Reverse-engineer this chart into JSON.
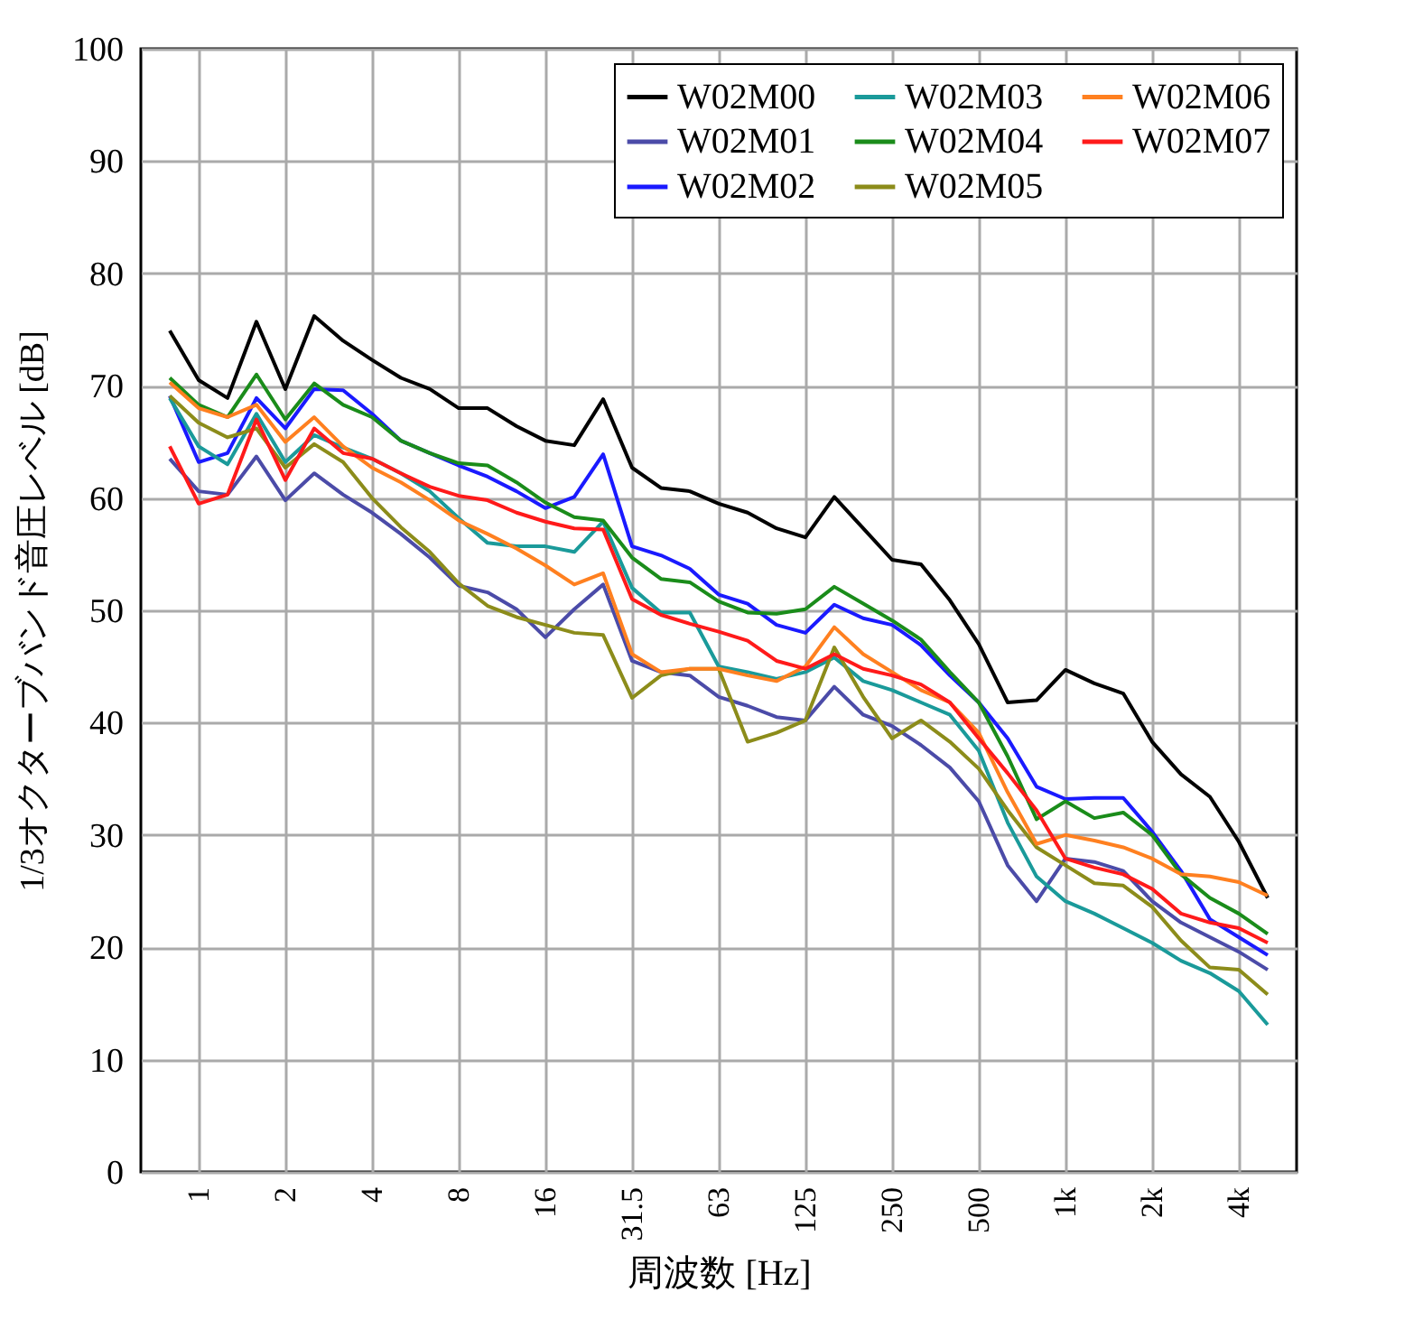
{
  "chart_data": {
    "type": "line",
    "xlabel": "周波数 [Hz]",
    "ylabel": "1/3オクターブバンド音圧レベル [dB]",
    "categories": [
      null,
      "1",
      null,
      null,
      "2",
      null,
      null,
      "4",
      null,
      null,
      "8",
      null,
      null,
      "16",
      null,
      null,
      "31.5",
      null,
      null,
      "63",
      null,
      null,
      "125",
      null,
      null,
      "250",
      null,
      null,
      "500",
      null,
      null,
      "1k",
      null,
      null,
      "2k",
      null,
      null,
      "4k",
      null
    ],
    "ylim": [
      0,
      100
    ],
    "yticks": [
      0,
      10,
      20,
      30,
      40,
      50,
      60,
      70,
      80,
      90,
      100
    ],
    "grid": true,
    "legend": "top right",
    "marker": "none",
    "line_style": "solid",
    "series": [
      {
        "name": "W02M00",
        "color": "#000000",
        "values": [
          74.9,
          70.5,
          68.9,
          75.7,
          69.7,
          76.2,
          74,
          72.3,
          70.7,
          69.7,
          68,
          68,
          66.4,
          65.1,
          64.7,
          68.8,
          62.7,
          60.9,
          60.6,
          59.5,
          58.7,
          57.3,
          56.5,
          60.1,
          57.3,
          54.5,
          54.1,
          50.9,
          47,
          41.8,
          42,
          44.7,
          43.5,
          42.6,
          38.3,
          35.4,
          33.4,
          29.4,
          24.4
        ]
      },
      {
        "name": "W02M01",
        "color": "#4b4ba8",
        "values": [
          63.5,
          60.6,
          60.3,
          63.7,
          59.8,
          62.2,
          60.3,
          58.7,
          56.8,
          54.7,
          52.2,
          51.6,
          50.1,
          47.6,
          50.1,
          52.3,
          45.5,
          44.5,
          44.2,
          42.3,
          41.5,
          40.5,
          40.2,
          43.2,
          40.7,
          39.7,
          38,
          36,
          33,
          27.3,
          24.1,
          27.9,
          27.6,
          26.8,
          24.1,
          22.2,
          20.9,
          19.6,
          18
        ]
      },
      {
        "name": "W02M02",
        "color": "#1a1aff",
        "values": [
          69.1,
          63.2,
          64,
          68.9,
          66.2,
          69.7,
          69.6,
          67.5,
          65.1,
          64,
          62.9,
          61.9,
          60.6,
          59.1,
          60.1,
          63.9,
          55.7,
          54.9,
          53.7,
          51.4,
          50.6,
          48.7,
          48,
          50.5,
          49.3,
          48.7,
          46.9,
          44.2,
          41.8,
          38.6,
          34.3,
          33.2,
          33.3,
          33.3,
          30.3,
          26.8,
          22.5,
          20.9,
          19.3
        ]
      },
      {
        "name": "W02M03",
        "color": "#1a9a9a",
        "values": [
          68.9,
          64.6,
          63,
          67.5,
          63.2,
          65.6,
          64.5,
          63.5,
          62.2,
          60.6,
          58.2,
          56,
          55.7,
          55.7,
          55.2,
          57.9,
          52,
          49.8,
          49.8,
          45,
          44.5,
          43.9,
          44.5,
          45.8,
          43.7,
          42.9,
          41.8,
          40.7,
          37.5,
          31.1,
          26.3,
          24.1,
          23,
          21.7,
          20.4,
          18.8,
          17.7,
          16.1,
          13.1
        ]
      },
      {
        "name": "W02M04",
        "color": "#1a8c1a",
        "values": [
          70.7,
          68.3,
          67.2,
          71,
          67,
          70.2,
          68.3,
          67.2,
          65.1,
          64,
          63.1,
          62.9,
          61.4,
          59.6,
          58.3,
          58,
          54.7,
          52.8,
          52.5,
          50.8,
          49.8,
          49.7,
          50.1,
          52.1,
          50.6,
          49.1,
          47.4,
          44.5,
          41.8,
          37,
          31.4,
          33,
          31.5,
          32,
          30,
          26.5,
          24.4,
          23,
          21.2
        ]
      },
      {
        "name": "W02M05",
        "color": "#8c8c1a",
        "values": [
          69.1,
          66.7,
          65.4,
          66.2,
          62.7,
          64.8,
          63.2,
          60,
          57.4,
          55.2,
          52.4,
          50.4,
          49.4,
          48.7,
          48,
          47.8,
          42.2,
          44.2,
          44.8,
          44.8,
          38.3,
          39.1,
          40.2,
          46.7,
          42.3,
          38.6,
          40.2,
          38.3,
          35.9,
          32.2,
          28.9,
          27.3,
          25.7,
          25.5,
          23.6,
          20.6,
          18.2,
          18,
          15.8
        ]
      },
      {
        "name": "W02M06",
        "color": "#ff8020",
        "values": [
          70.3,
          68,
          67.2,
          68.3,
          65,
          67.2,
          64.6,
          62.7,
          61.4,
          59.8,
          58,
          56.8,
          55.5,
          54,
          52.3,
          53.3,
          46.1,
          44.5,
          44.8,
          44.8,
          44.2,
          43.7,
          45,
          48.5,
          46.1,
          44.5,
          42.9,
          41.8,
          39.1,
          33.8,
          29.2,
          30,
          29.5,
          28.9,
          27.9,
          26.5,
          26.3,
          25.8,
          24.6
        ]
      },
      {
        "name": "W02M07",
        "color": "#ff1a1a",
        "values": [
          64.6,
          59.5,
          60.3,
          67,
          61.6,
          66.2,
          64,
          63.5,
          62.2,
          61,
          60.2,
          59.8,
          58.7,
          57.9,
          57.3,
          57.2,
          51,
          49.6,
          48.8,
          48.1,
          47.3,
          45.5,
          44.8,
          46.1,
          44.8,
          44.2,
          43.4,
          41.8,
          38.6,
          35.5,
          32.2,
          27.9,
          27.1,
          26.5,
          25.2,
          23,
          22.2,
          21.7,
          20.4
        ]
      }
    ]
  }
}
